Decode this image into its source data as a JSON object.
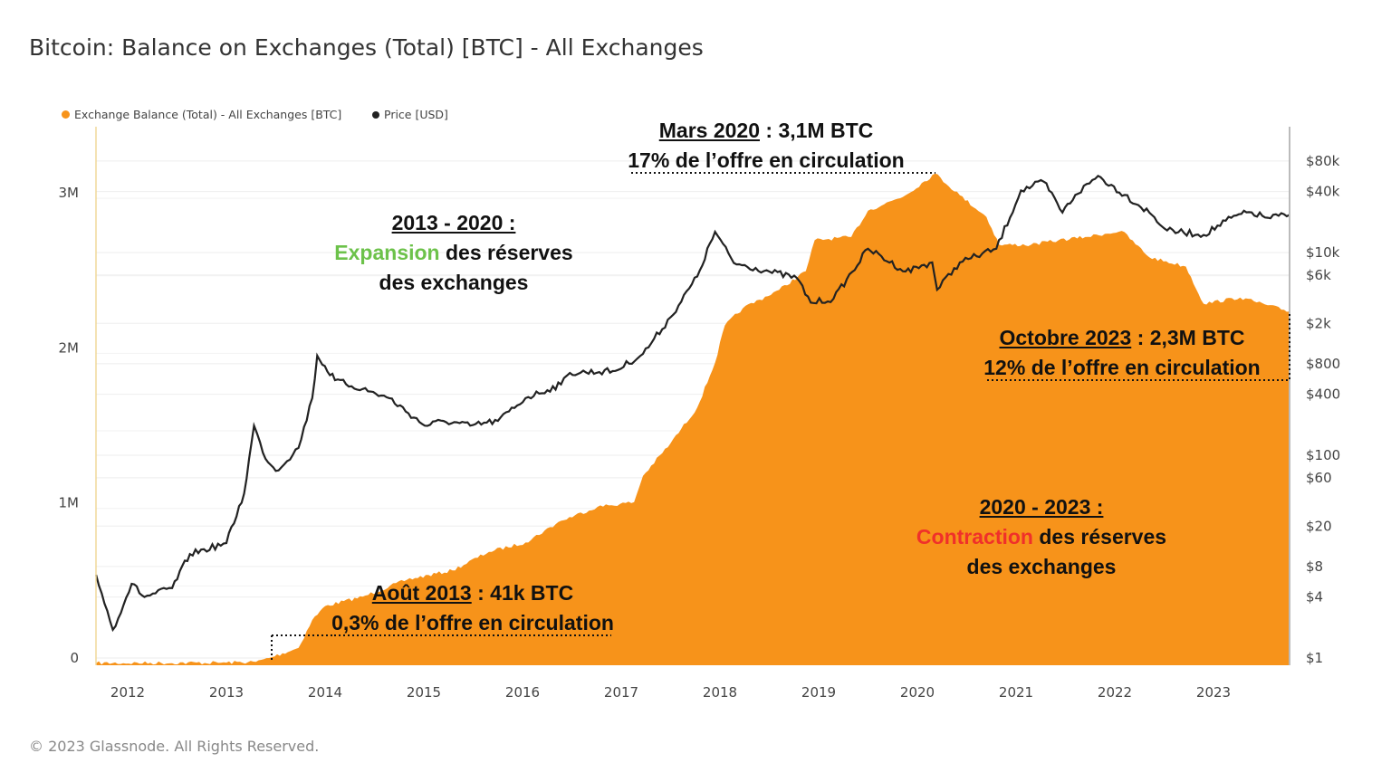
{
  "title": "Bitcoin: Balance on Exchanges (Total) [BTC] - All Exchanges",
  "copyright": "© 2023 Glassnode. All Rights Reserved.",
  "colors": {
    "balance": "#f7931a",
    "price": "#222222",
    "green": "#6cc24a",
    "red": "#f0302a"
  },
  "annotations": {
    "mars2020": {
      "date": "Mars 2020",
      "rest": " : 3,1M BTC",
      "line2": "17% de l’offre en circulation"
    },
    "expansion": {
      "title": "2013 - 2020 :",
      "word": "Expansion",
      "rest": " des réserves",
      "line3": "des exchanges"
    },
    "oct2023": {
      "date": "Octobre 2023",
      "rest": " : 2,3M BTC",
      "line2": "12% de l’offre en circulation"
    },
    "contraction": {
      "title": "2020 - 2023 :",
      "word": "Contraction",
      "rest": " des réserves",
      "line3": "des exchanges"
    },
    "aout2013": {
      "date": "Août 2013",
      "rest": " : 41k BTC",
      "line2": "0,3% de l’offre en circulation"
    }
  },
  "chart_data": {
    "type": "area+line",
    "title": "Bitcoin: Balance on Exchanges (Total) [BTC] - All Exchanges",
    "legend": "top-left",
    "grid": true,
    "x_ticks": [
      "2012",
      "2013",
      "2014",
      "2015",
      "2016",
      "2017",
      "2018",
      "2019",
      "2020",
      "2021",
      "2022",
      "2023"
    ],
    "xlim": [
      2011.68,
      2023.77
    ],
    "y_left": {
      "ticks": [
        "0",
        "1M",
        "2M",
        "3M"
      ],
      "tick_values": [
        0,
        1,
        2,
        3
      ],
      "unit": "M BTC",
      "ylim": [
        0,
        3.5
      ]
    },
    "y_right": {
      "scale": "log",
      "ticks": [
        "$1",
        "$4",
        "$8",
        "$20",
        "$60",
        "$100",
        "$400",
        "$800",
        "$2k",
        "$6k",
        "$10k",
        "$40k",
        "$80k"
      ],
      "tick_values": [
        1,
        4,
        8,
        20,
        60,
        100,
        400,
        800,
        2000,
        6000,
        10000,
        40000,
        80000
      ]
    },
    "series": [
      {
        "name": "Exchange Balance (Total) - All Exchanges [BTC]",
        "axis": "left",
        "type": "area",
        "x": [
          2011.68,
          2013.0,
          2013.3,
          2013.46,
          2013.73,
          2013.87,
          2014.0,
          2014.38,
          2014.83,
          2015.29,
          2015.66,
          2016.03,
          2016.39,
          2016.76,
          2017.13,
          2017.22,
          2017.5,
          2017.77,
          2017.95,
          2018.05,
          2018.23,
          2018.6,
          2018.87,
          2018.96,
          2019.33,
          2019.5,
          2019.88,
          2020.18,
          2020.43,
          2020.7,
          2020.83,
          2021.15,
          2021.43,
          2021.7,
          2022.07,
          2022.35,
          2022.72,
          2022.9,
          2023.27,
          2023.55,
          2023.77
        ],
        "y": [
          0.002,
          0.005,
          0.01,
          0.041,
          0.1,
          0.28,
          0.37,
          0.43,
          0.54,
          0.6,
          0.72,
          0.78,
          0.92,
          1.01,
          1.04,
          1.21,
          1.42,
          1.65,
          1.94,
          2.18,
          2.29,
          2.41,
          2.53,
          2.73,
          2.75,
          2.92,
          3.02,
          3.16,
          3.02,
          2.88,
          2.7,
          2.7,
          2.73,
          2.75,
          2.79,
          2.62,
          2.56,
          2.32,
          2.36,
          2.31,
          2.27
        ]
      },
      {
        "name": "Price [USD]",
        "axis": "right",
        "type": "line",
        "x": [
          2011.68,
          2011.85,
          2012.04,
          2012.17,
          2012.45,
          2012.63,
          2013.0,
          2013.18,
          2013.28,
          2013.37,
          2013.5,
          2013.73,
          2013.87,
          2013.92,
          2014.1,
          2014.38,
          2014.65,
          2015.01,
          2015.2,
          2015.47,
          2015.75,
          2016.03,
          2016.39,
          2016.48,
          2016.94,
          2017.22,
          2017.5,
          2017.77,
          2017.95,
          2018.14,
          2018.5,
          2018.78,
          2018.92,
          2019.15,
          2019.5,
          2019.88,
          2020.15,
          2020.2,
          2020.43,
          2020.8,
          2021.05,
          2021.28,
          2021.47,
          2021.6,
          2021.83,
          2022.1,
          2022.35,
          2022.53,
          2022.9,
          2023.18,
          2023.36,
          2023.55,
          2023.77
        ],
        "y": [
          6.6,
          1.9,
          5.4,
          4,
          4.9,
          10.6,
          13.6,
          42,
          196,
          106,
          70,
          118,
          366,
          960,
          550,
          450,
          366,
          196,
          218,
          196,
          218,
          366,
          500,
          650,
          680,
          1000,
          2300,
          5800,
          16000,
          7900,
          6500,
          5600,
          3200,
          3500,
          10900,
          6500,
          8000,
          4300,
          8000,
          10900,
          41000,
          50000,
          24800,
          37000,
          57000,
          37000,
          24800,
          16500,
          14900,
          22000,
          25000,
          22000,
          23500
        ]
      }
    ]
  }
}
